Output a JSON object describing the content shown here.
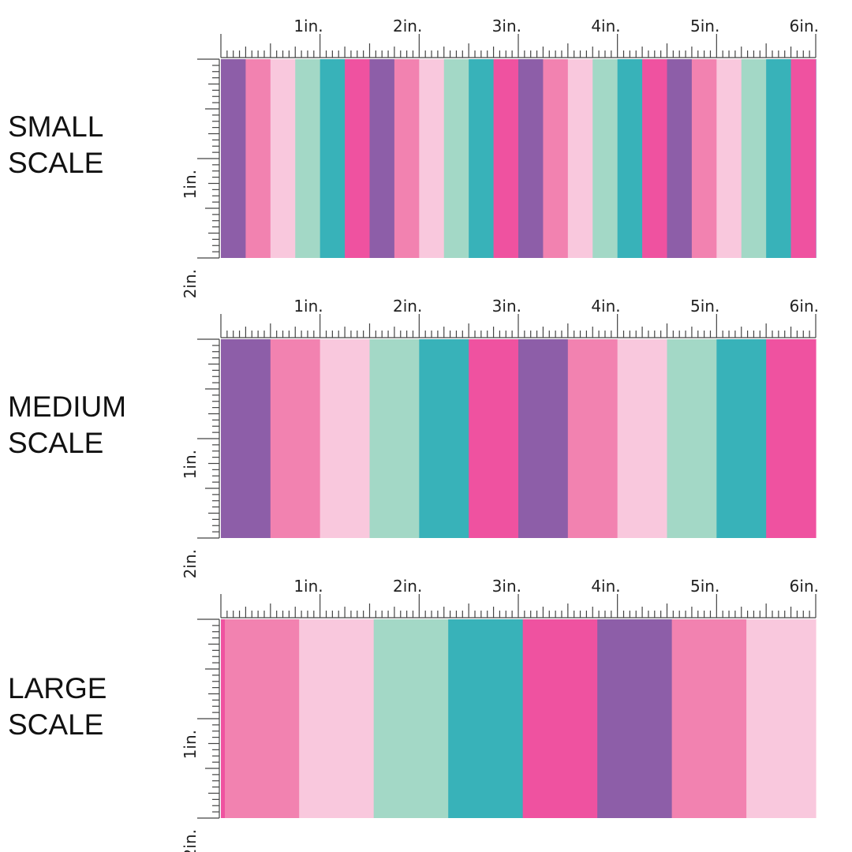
{
  "colors": {
    "palette": [
      "#8d5ea8",
      "#f282b0",
      "#f9c8dd",
      "#a3d8c6",
      "#38b2b9",
      "#ef52a0"
    ],
    "ruler": "#444444",
    "text": "#111111"
  },
  "rulers": {
    "top_labels": [
      "1in.",
      "2in.",
      "3in.",
      "4in.",
      "5in.",
      "6in."
    ],
    "side_labels": [
      "1in.",
      "2in."
    ]
  },
  "scales": [
    {
      "id": "small",
      "label_line1": "SMALL",
      "label_line2": "SCALE",
      "stripes_per_inch": 4,
      "offset_stripes": 0
    },
    {
      "id": "medium",
      "label_line1": "MEDIUM",
      "label_line2": "SCALE",
      "stripes_per_inch": 2,
      "offset_stripes": 0
    },
    {
      "id": "large",
      "label_line1": "LARGE",
      "label_line2": "SCALE",
      "stripes_per_inch": 1.33,
      "offset_stripes": 0.95
    }
  ]
}
